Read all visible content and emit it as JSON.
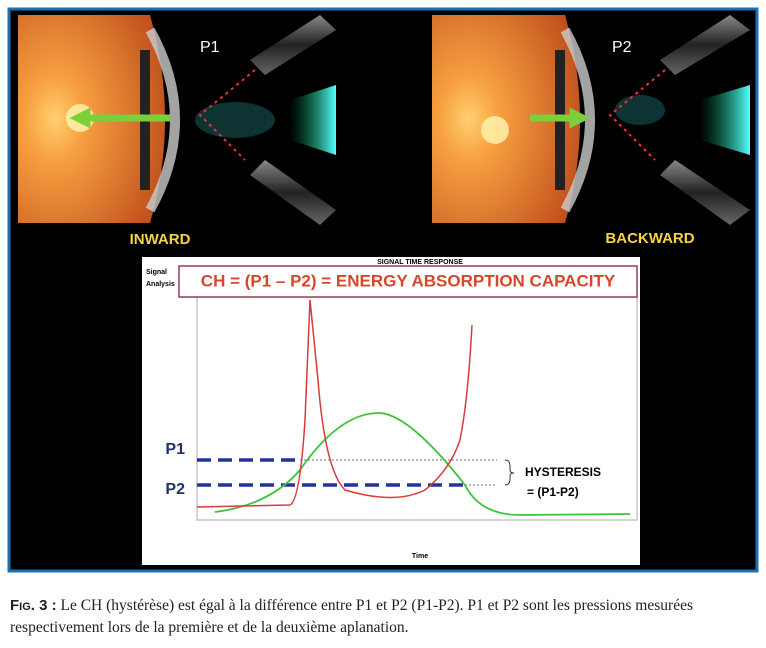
{
  "figure": {
    "panels": [
      {
        "label": "P1",
        "direction": "INWARD"
      },
      {
        "label": "P2",
        "direction": "BACKWARD"
      }
    ],
    "graph": {
      "title": "SIGNAL TIME RESPONSE",
      "y_axis_label": [
        "Signal",
        "Analysis"
      ],
      "equation": "CH = (P1 – P2) = ENERGY ABSORPTION CAPACITY",
      "levels": [
        "P1",
        "P2"
      ],
      "annotation": [
        "HYSTERESIS",
        "= (P1-P2)"
      ],
      "x_axis_label": "Time"
    }
  },
  "caption": {
    "label": "Fig. 3 :",
    "text": "Le CH (hystérèse) est égal à la différence entre P1 et P2 (P1-P2). P1 et P2 sont les pressions mesurées respectivement lors de la première et de la deuxième aplanation."
  }
}
